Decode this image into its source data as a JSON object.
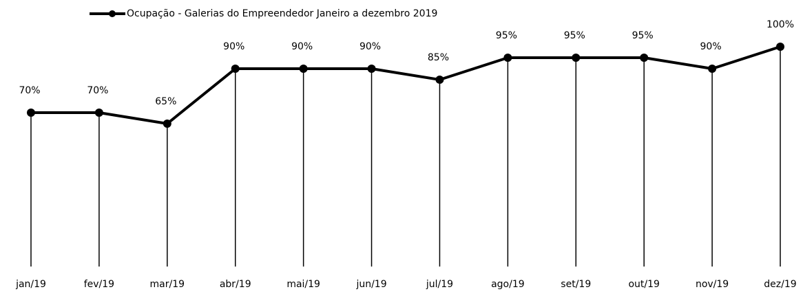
{
  "chart_data": {
    "type": "line",
    "categories": [
      "jan/19",
      "fev/19",
      "mar/19",
      "abr/19",
      "mai/19",
      "jun/19",
      "jul/19",
      "ago/19",
      "set/19",
      "out/19",
      "nov/19",
      "dez/19"
    ],
    "series": [
      {
        "name": "Ocupação - Galerias do Empreendedor Janeiro a dezembro 2019",
        "color": "#000000",
        "values": [
          70,
          70,
          65,
          90,
          90,
          90,
          85,
          95,
          95,
          95,
          90,
          100
        ],
        "value_labels": [
          "70%",
          "70%",
          "65%",
          "90%",
          "90%",
          "90%",
          "85%",
          "95%",
          "95%",
          "95%",
          "90%",
          "100%"
        ]
      }
    ],
    "ylim": [
      0,
      100
    ],
    "legend": "top",
    "drop_lines": true
  }
}
